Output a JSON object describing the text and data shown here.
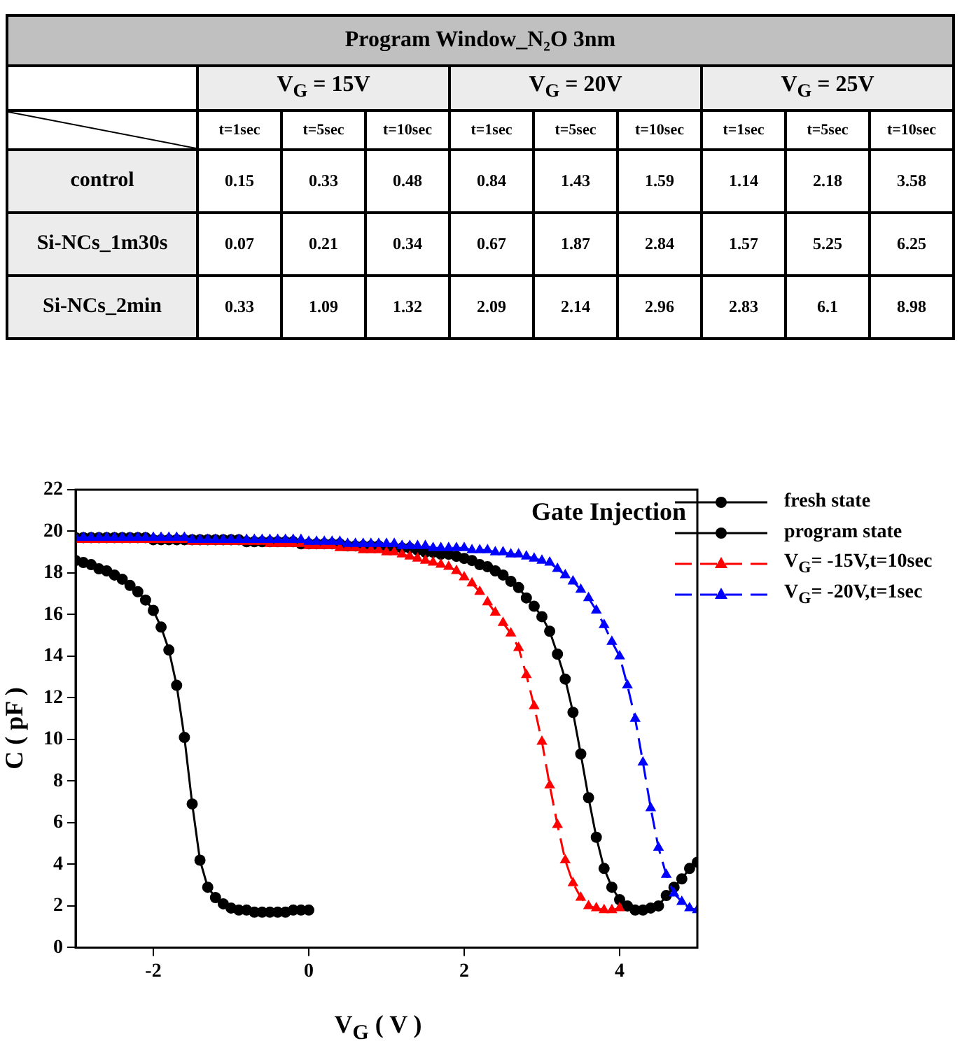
{
  "chart_data": [
    {
      "type": "heatmap",
      "title": "Program Window_N₂O 3nm",
      "annotations": [
        "V$_{G}$ = 15V",
        "V$_{G}$ = 20V",
        "V$_{G}$ = 25V"
      ],
      "categories": [
        "t=1sec",
        "t=5sec",
        "t=10sec",
        "t=1sec",
        "t=5sec",
        "t=10sec",
        "t=1sec",
        "t=5sec",
        "t=10sec"
      ],
      "y_categories": [
        "control",
        "Si-NCs_1m30s",
        "Si-NCs_2min"
      ],
      "data_labels": true,
      "cells": [
        [
          0.15,
          0.33,
          0.48,
          0.84,
          1.43,
          1.59,
          1.14,
          2.18,
          3.58
        ],
        [
          0.07,
          0.21,
          0.34,
          0.67,
          1.87,
          2.84,
          1.57,
          5.25,
          6.25
        ],
        [
          0.33,
          1.09,
          1.32,
          2.09,
          2.14,
          2.96,
          2.83,
          6.1,
          8.98
        ]
      ]
    },
    {
      "type": "line",
      "title": "Gate Injection",
      "xlabel": "V$_{G}$ ( V )",
      "ylabel": "C ( pF )",
      "xlim": [
        -3,
        5
      ],
      "xticks": [
        -2,
        0,
        2,
        4
      ],
      "ylim": [
        0,
        22
      ],
      "yticks": [
        0,
        2,
        4,
        6,
        8,
        10,
        12,
        14,
        16,
        18,
        20,
        22
      ],
      "legend": "right",
      "series": [
        {
          "name": "fresh state",
          "color": "#000000",
          "marker": "circle",
          "line_style": "solid",
          "x": [
            -3,
            -2.9,
            -2.8,
            -2.7,
            -2.6,
            -2.5,
            -2.4,
            -2.3,
            -2.2,
            -2.1,
            -2,
            -1.9,
            -1.8,
            -1.7,
            -1.6,
            -1.5,
            -1.4,
            -1.3,
            -1.2,
            -1.1,
            -1,
            -0.9,
            -0.8,
            -0.7,
            -0.6,
            -0.5,
            -0.4,
            -0.3,
            -0.2,
            -0.1,
            0
          ],
          "values": [
            18.6,
            18.5,
            18.4,
            18.2,
            18.1,
            17.9,
            17.7,
            17.4,
            17.1,
            16.7,
            16.2,
            15.4,
            14.3,
            12.6,
            10.1,
            6.9,
            4.2,
            2.9,
            2.4,
            2.1,
            1.9,
            1.8,
            1.8,
            1.7,
            1.7,
            1.7,
            1.7,
            1.7,
            1.8,
            1.8,
            1.8
          ]
        },
        {
          "name": "program state",
          "color": "#000000",
          "marker": "circle",
          "line_style": "solid",
          "x": [
            -3,
            -2.9,
            -2.8,
            -2.7,
            -2.6,
            -2.5,
            -2.4,
            -2.3,
            -2.2,
            -2.1,
            -2,
            -1.9,
            -1.8,
            -1.7,
            -1.6,
            -1.5,
            -1.4,
            -1.3,
            -1.2,
            -1.1,
            -1,
            -0.9,
            -0.8,
            -0.7,
            -0.6,
            -0.5,
            -0.4,
            -0.3,
            -0.2,
            -0.1,
            0,
            0.1,
            0.2,
            0.3,
            0.4,
            0.5,
            0.6,
            0.7,
            0.8,
            0.9,
            1,
            1.1,
            1.2,
            1.3,
            1.4,
            1.5,
            1.6,
            1.7,
            1.8,
            1.9,
            2,
            2.1,
            2.2,
            2.3,
            2.4,
            2.5,
            2.6,
            2.7,
            2.8,
            2.9,
            3,
            3.1,
            3.2,
            3.3,
            3.4,
            3.5,
            3.6,
            3.7,
            3.8,
            3.9,
            4,
            4.1,
            4.2,
            4.3,
            4.4,
            4.5,
            4.6,
            4.7,
            4.8,
            4.9,
            5
          ],
          "values": [
            19.7,
            19.7,
            19.7,
            19.7,
            19.7,
            19.7,
            19.7,
            19.7,
            19.7,
            19.7,
            19.6,
            19.6,
            19.6,
            19.6,
            19.6,
            19.6,
            19.6,
            19.6,
            19.6,
            19.6,
            19.6,
            19.6,
            19.5,
            19.5,
            19.5,
            19.5,
            19.5,
            19.5,
            19.5,
            19.4,
            19.4,
            19.4,
            19.4,
            19.4,
            19.4,
            19.3,
            19.3,
            19.3,
            19.3,
            19.3,
            19.2,
            19.2,
            19.2,
            19.2,
            19.1,
            19.0,
            19.0,
            18.9,
            18.9,
            18.8,
            18.7,
            18.6,
            18.4,
            18.3,
            18.1,
            17.9,
            17.6,
            17.3,
            16.8,
            16.4,
            15.9,
            15.2,
            14.1,
            12.9,
            11.3,
            9.3,
            7.2,
            5.3,
            3.8,
            2.9,
            2.3,
            2.0,
            1.8,
            1.8,
            1.9,
            2.0,
            2.5,
            2.9,
            3.3,
            3.8,
            4.1
          ]
        },
        {
          "name": "V$_{G}$= -15V,t=10sec",
          "color": "#ff0000",
          "marker": "triangle",
          "line_style": "dashed",
          "x": [
            -3,
            -2.9,
            -2.8,
            -2.7,
            -2.6,
            -2.5,
            -2.4,
            -2.3,
            -2.2,
            -2.1,
            -2,
            -1.9,
            -1.8,
            -1.7,
            -1.6,
            -1.5,
            -1.4,
            -1.3,
            -1.2,
            -1.1,
            -1,
            -0.9,
            -0.8,
            -0.7,
            -0.6,
            -0.5,
            -0.4,
            -0.3,
            -0.2,
            -0.1,
            0,
            0.1,
            0.2,
            0.3,
            0.4,
            0.5,
            0.6,
            0.7,
            0.8,
            0.9,
            1,
            1.1,
            1.2,
            1.3,
            1.4,
            1.5,
            1.6,
            1.7,
            1.8,
            1.9,
            2,
            2.1,
            2.2,
            2.3,
            2.4,
            2.5,
            2.6,
            2.7,
            2.8,
            2.9,
            3,
            3.1,
            3.2,
            3.3,
            3.4,
            3.5,
            3.6,
            3.7,
            3.8,
            3.9,
            4
          ],
          "values": [
            19.6,
            19.6,
            19.6,
            19.6,
            19.6,
            19.6,
            19.6,
            19.6,
            19.6,
            19.6,
            19.6,
            19.6,
            19.6,
            19.6,
            19.6,
            19.5,
            19.5,
            19.5,
            19.5,
            19.5,
            19.5,
            19.5,
            19.5,
            19.5,
            19.5,
            19.4,
            19.4,
            19.4,
            19.4,
            19.4,
            19.3,
            19.3,
            19.3,
            19.3,
            19.2,
            19.2,
            19.2,
            19.1,
            19.1,
            19.1,
            19.0,
            19.0,
            18.9,
            18.8,
            18.7,
            18.6,
            18.5,
            18.4,
            18.3,
            18.1,
            17.8,
            17.5,
            17.1,
            16.6,
            16.1,
            15.6,
            15.1,
            14.4,
            13.1,
            11.6,
            9.9,
            7.8,
            5.9,
            4.2,
            3.1,
            2.4,
            2.0,
            1.9,
            1.8,
            1.8,
            1.9
          ]
        },
        {
          "name": "V$_{G}$= -20V,t=1sec",
          "color": "#0000ff",
          "marker": "triangle",
          "line_style": "dashed",
          "x": [
            -3,
            -2.9,
            -2.8,
            -2.7,
            -2.6,
            -2.5,
            -2.4,
            -2.3,
            -2.2,
            -2.1,
            -2,
            -1.9,
            -1.8,
            -1.7,
            -1.6,
            -1.5,
            -1.4,
            -1.3,
            -1.2,
            -1.1,
            -1,
            -0.9,
            -0.8,
            -0.7,
            -0.6,
            -0.5,
            -0.4,
            -0.3,
            -0.2,
            -0.1,
            0,
            0.1,
            0.2,
            0.3,
            0.4,
            0.5,
            0.6,
            0.7,
            0.8,
            0.9,
            1,
            1.1,
            1.2,
            1.3,
            1.4,
            1.5,
            1.6,
            1.7,
            1.8,
            1.9,
            2,
            2.1,
            2.2,
            2.3,
            2.4,
            2.5,
            2.6,
            2.7,
            2.8,
            2.9,
            3,
            3.1,
            3.2,
            3.3,
            3.4,
            3.5,
            3.6,
            3.7,
            3.8,
            3.9,
            4,
            4.1,
            4.2,
            4.3,
            4.4,
            4.5,
            4.6,
            4.7,
            4.8,
            4.9,
            5
          ],
          "values": [
            19.7,
            19.7,
            19.7,
            19.7,
            19.7,
            19.7,
            19.7,
            19.7,
            19.7,
            19.7,
            19.7,
            19.7,
            19.7,
            19.7,
            19.7,
            19.6,
            19.6,
            19.6,
            19.6,
            19.6,
            19.6,
            19.6,
            19.6,
            19.6,
            19.6,
            19.6,
            19.6,
            19.6,
            19.6,
            19.6,
            19.5,
            19.5,
            19.5,
            19.5,
            19.5,
            19.4,
            19.4,
            19.4,
            19.4,
            19.4,
            19.4,
            19.4,
            19.3,
            19.3,
            19.3,
            19.3,
            19.2,
            19.2,
            19.2,
            19.2,
            19.2,
            19.1,
            19.1,
            19.1,
            19.0,
            19.0,
            18.9,
            18.9,
            18.8,
            18.7,
            18.6,
            18.5,
            18.2,
            17.9,
            17.6,
            17.2,
            16.8,
            16.2,
            15.5,
            14.7,
            14.0,
            12.6,
            11.0,
            8.9,
            6.7,
            4.8,
            3.5,
            2.6,
            2.2,
            1.9,
            1.8
          ]
        }
      ]
    }
  ]
}
